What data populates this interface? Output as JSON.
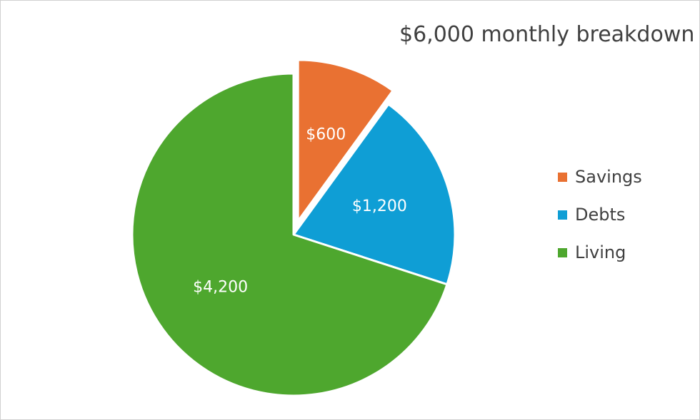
{
  "chart_data": {
    "type": "pie",
    "title": "$6,000 monthly breakdown",
    "slices": [
      {
        "label": "Savings",
        "value": 600,
        "display": "$600",
        "color": "#E97132",
        "exploded": true
      },
      {
        "label": "Debts",
        "value": 1200,
        "display": "$1,200",
        "color": "#0F9ED5",
        "exploded": false
      },
      {
        "label": "Living",
        "value": 4200,
        "display": "$4,200",
        "color": "#4EA72E",
        "exploded": false
      }
    ],
    "legend": [
      "Savings",
      "Debts",
      "Living"
    ],
    "legend_position": "right"
  }
}
